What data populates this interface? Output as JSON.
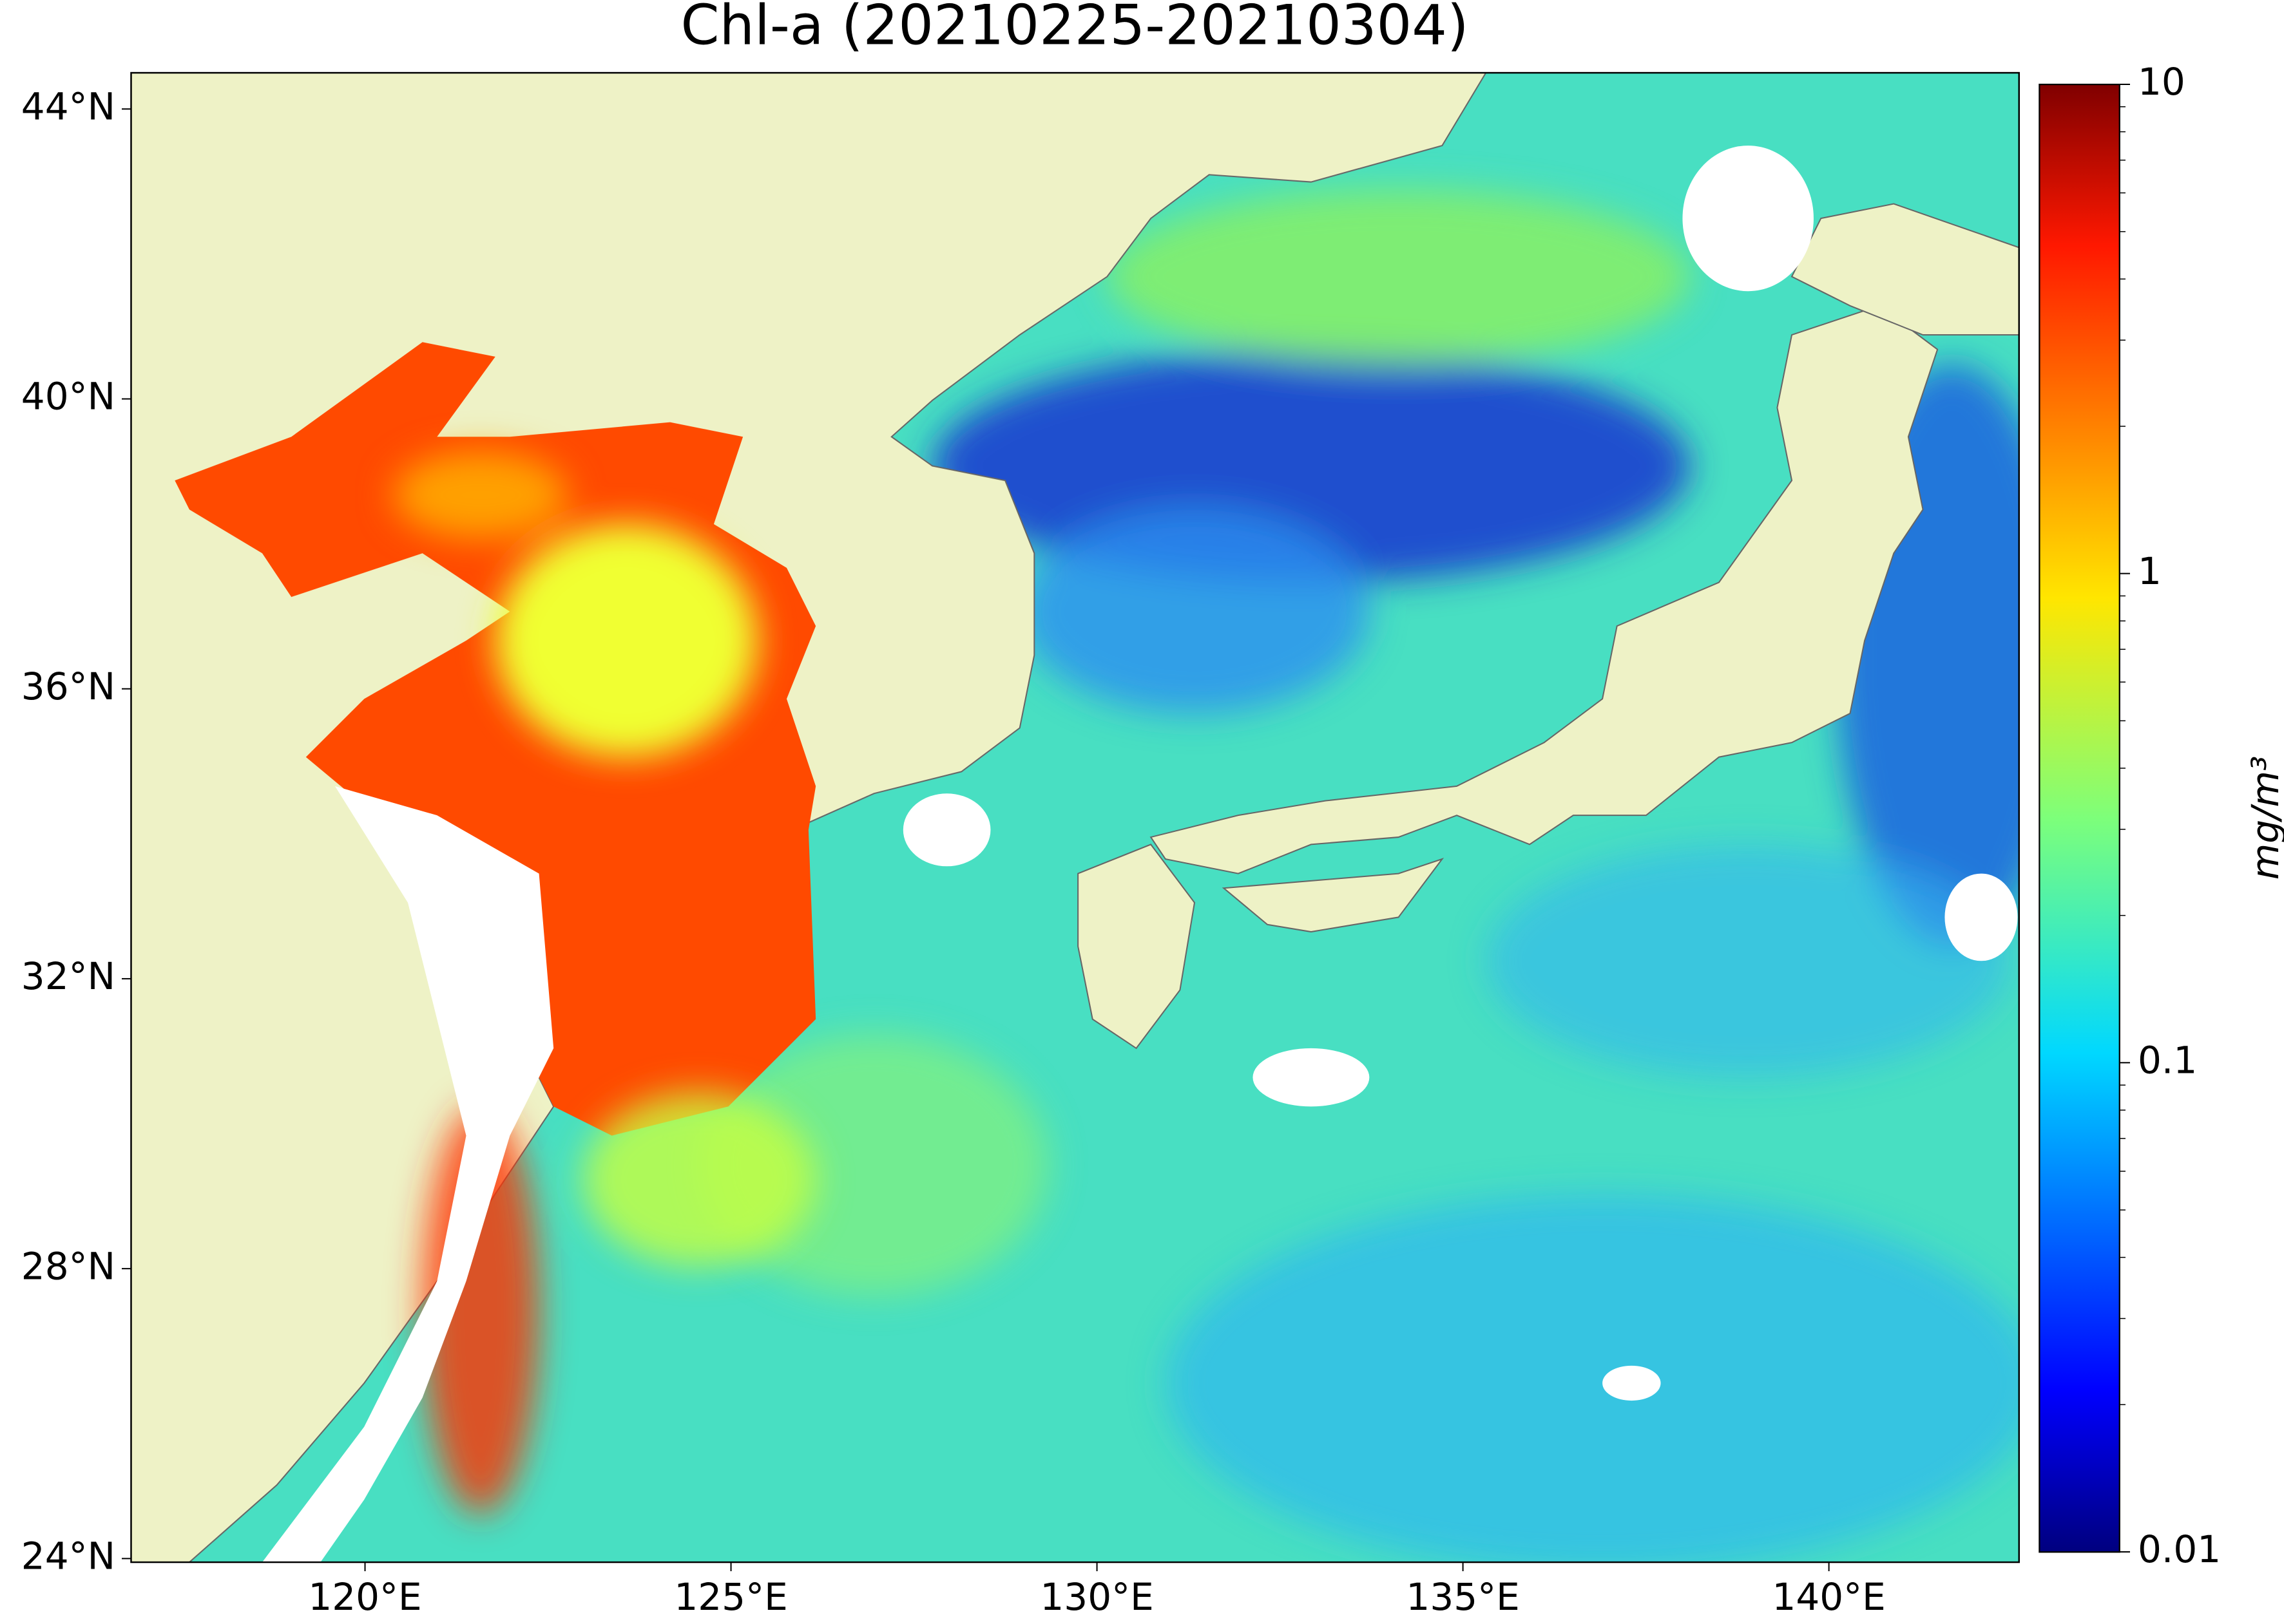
{
  "chart_data": {
    "type": "map",
    "title": "Chl-a (20210225-20210304)",
    "xlim": [
      116.8,
      142.6
    ],
    "ylim": [
      23.95,
      44.5
    ],
    "xticks": [
      {
        "value": 120,
        "label": "120°E"
      },
      {
        "value": 125,
        "label": "125°E"
      },
      {
        "value": 130,
        "label": "130°E"
      },
      {
        "value": 135,
        "label": "135°E"
      },
      {
        "value": 140,
        "label": "140°E"
      }
    ],
    "yticks": [
      {
        "value": 24,
        "label": "24°N"
      },
      {
        "value": 28,
        "label": "28°N"
      },
      {
        "value": 32,
        "label": "32°N"
      },
      {
        "value": 36,
        "label": "36°N"
      },
      {
        "value": 40,
        "label": "40°N"
      },
      {
        "value": 44,
        "label": "44°N"
      }
    ],
    "colorbar": {
      "label": "mg/m³",
      "lim": [
        0.01,
        10
      ],
      "ticks": [
        0.01,
        0.1,
        1,
        10
      ],
      "log": true
    }
  }
}
